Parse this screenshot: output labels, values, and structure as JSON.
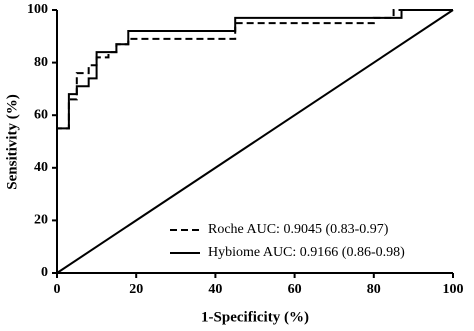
{
  "chart_data": {
    "type": "line",
    "x_label": "1-Specificity (%)",
    "y_label": "Sensitivity (%)",
    "xlim": [
      0,
      100
    ],
    "ylim": [
      0,
      100
    ],
    "xticks": [
      0,
      20,
      40,
      60,
      80,
      100
    ],
    "yticks": [
      0,
      20,
      40,
      60,
      80,
      100
    ],
    "grid": false,
    "legend": "lower right",
    "series": [
      {
        "name": "Roche AUC: 0.9045 (0.83-0.97)",
        "color": "#000000",
        "dash": true,
        "x": [
          0,
          0,
          3,
          3,
          5,
          5,
          8,
          8,
          10,
          10,
          13,
          13,
          15,
          15,
          18,
          18,
          45,
          45,
          80,
          80,
          85,
          85,
          100
        ],
        "values": [
          50,
          55,
          55,
          66,
          66,
          76,
          76,
          79,
          79,
          82,
          82,
          84,
          84,
          87,
          87,
          89,
          89,
          95,
          95,
          97,
          97,
          100,
          100
        ]
      },
      {
        "name": "Hybiome AUC: 0.9166 (0.86-0.98)",
        "color": "#000000",
        "dash": false,
        "x": [
          0,
          0,
          3,
          3,
          5,
          5,
          8,
          8,
          10,
          10,
          15,
          15,
          18,
          18,
          45,
          45,
          87,
          87,
          100
        ],
        "values": [
          50,
          55,
          55,
          68,
          68,
          71,
          71,
          74,
          74,
          84,
          84,
          87,
          87,
          92,
          92,
          97,
          97,
          100,
          100
        ]
      },
      {
        "color": "#000000",
        "dash": false,
        "x": [
          0,
          100
        ],
        "values": [
          0,
          100
        ]
      }
    ]
  }
}
